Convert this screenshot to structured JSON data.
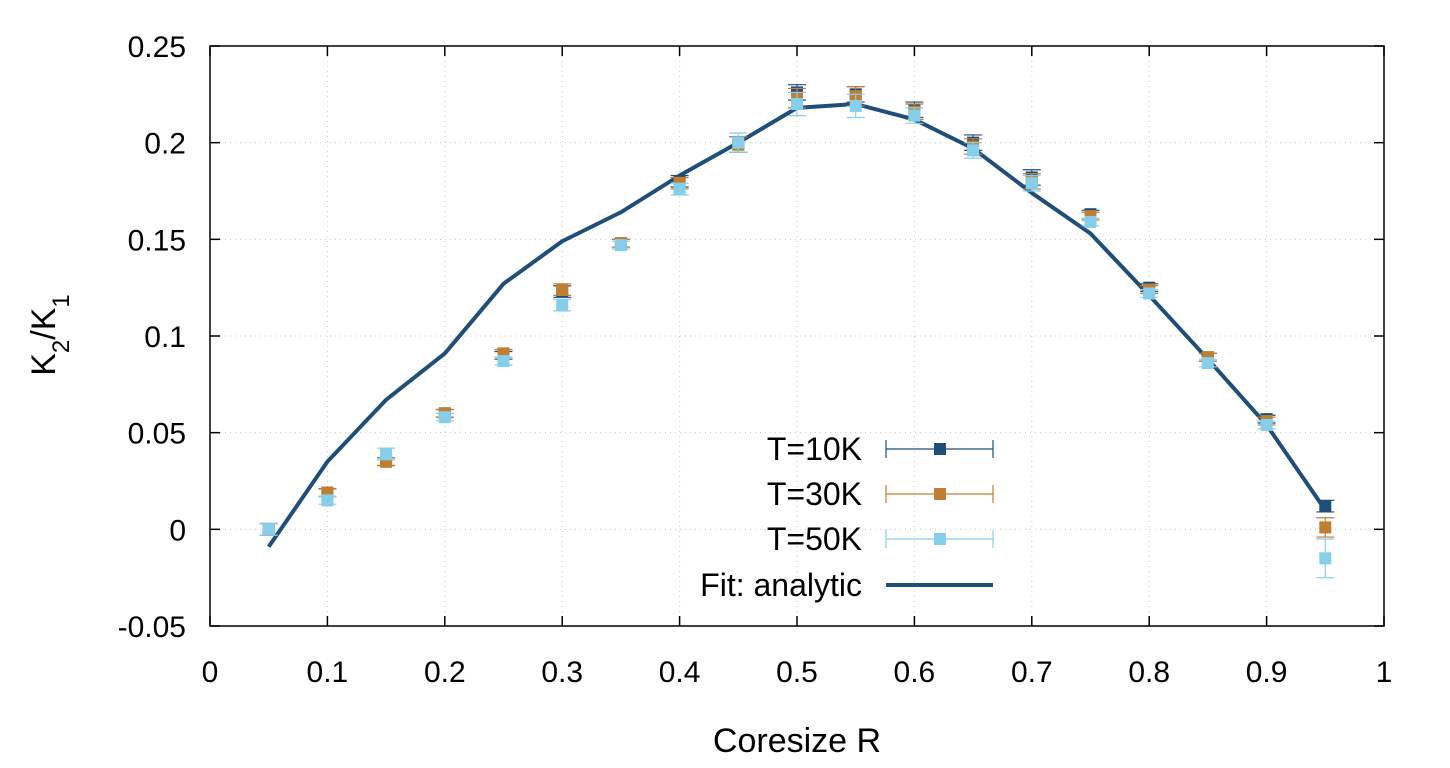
{
  "chart_data": {
    "type": "scatter",
    "xlabel": "Coresize R",
    "ylabel": {
      "base": "K",
      "sub1": "2",
      "slash": "/",
      "base2": "K",
      "sub2": "1"
    },
    "xlim": [
      0,
      1
    ],
    "ylim": [
      -0.05,
      0.25
    ],
    "x_ticks": [
      {
        "value": 0,
        "label": "0"
      },
      {
        "value": 0.1,
        "label": "0.1"
      },
      {
        "value": 0.2,
        "label": "0.2"
      },
      {
        "value": 0.3,
        "label": "0.3"
      },
      {
        "value": 0.4,
        "label": "0.4"
      },
      {
        "value": 0.5,
        "label": "0.5"
      },
      {
        "value": 0.6,
        "label": "0.6"
      },
      {
        "value": 0.7,
        "label": "0.7"
      },
      {
        "value": 0.8,
        "label": "0.8"
      },
      {
        "value": 0.9,
        "label": "0.9"
      },
      {
        "value": 1,
        "label": "1"
      }
    ],
    "y_ticks": [
      {
        "value": -0.05,
        "label": "-0.05"
      },
      {
        "value": 0,
        "label": "0"
      },
      {
        "value": 0.05,
        "label": "0.05"
      },
      {
        "value": 0.1,
        "label": "0.1"
      },
      {
        "value": 0.15,
        "label": "0.15"
      },
      {
        "value": 0.2,
        "label": "0.2"
      },
      {
        "value": 0.25,
        "label": "0.25"
      }
    ],
    "grid": true,
    "legend_position": "bottom-right",
    "x": [
      0.05,
      0.1,
      0.15,
      0.2,
      0.25,
      0.3,
      0.35,
      0.4,
      0.45,
      0.5,
      0.55,
      0.6,
      0.65,
      0.7,
      0.75,
      0.8,
      0.85,
      0.9,
      0.95
    ],
    "series": [
      {
        "name": "T=10K",
        "kind": "points",
        "color": "#1f4e79",
        "values": [
          0.0,
          0.019,
          0.035,
          0.06,
          0.09,
          0.123,
          0.148,
          0.18,
          0.199,
          0.226,
          0.225,
          0.217,
          0.2,
          0.182,
          0.163,
          0.125,
          0.089,
          0.057,
          0.012
        ],
        "errors": [
          0.003,
          0.002,
          0.002,
          0.002,
          0.002,
          0.003,
          0.002,
          0.003,
          0.004,
          0.004,
          0.004,
          0.004,
          0.004,
          0.004,
          0.002,
          0.002,
          0.002,
          0.002,
          0.003
        ]
      },
      {
        "name": "T=30K",
        "kind": "points",
        "color": "#c07f30",
        "values": [
          0.0,
          0.019,
          0.035,
          0.06,
          0.091,
          0.124,
          0.148,
          0.179,
          0.199,
          0.223,
          0.224,
          0.216,
          0.198,
          0.18,
          0.162,
          0.124,
          0.089,
          0.056,
          0.001
        ],
        "errors": [
          0.003,
          0.002,
          0.002,
          0.002,
          0.002,
          0.003,
          0.002,
          0.003,
          0.004,
          0.005,
          0.005,
          0.004,
          0.004,
          0.004,
          0.002,
          0.002,
          0.002,
          0.002,
          0.005
        ]
      },
      {
        "name": "T=50K",
        "kind": "points",
        "color": "#87ceeb",
        "values": [
          0.0,
          0.015,
          0.039,
          0.058,
          0.087,
          0.116,
          0.147,
          0.176,
          0.2,
          0.22,
          0.219,
          0.214,
          0.196,
          0.179,
          0.159,
          0.122,
          0.086,
          0.054,
          -0.015
        ],
        "errors": [
          0.003,
          0.002,
          0.003,
          0.002,
          0.002,
          0.003,
          0.002,
          0.003,
          0.005,
          0.006,
          0.006,
          0.004,
          0.004,
          0.004,
          0.002,
          0.002,
          0.002,
          0.002,
          0.01
        ]
      },
      {
        "name": "Fit: analytic",
        "kind": "line",
        "color": "#1f4e79",
        "values": [
          -0.009,
          0.035,
          0.067,
          0.091,
          0.127,
          0.149,
          0.164,
          0.183,
          0.2,
          0.218,
          0.22,
          0.212,
          0.197,
          0.174,
          0.153,
          0.121,
          0.088,
          0.054,
          0.01
        ]
      }
    ]
  }
}
